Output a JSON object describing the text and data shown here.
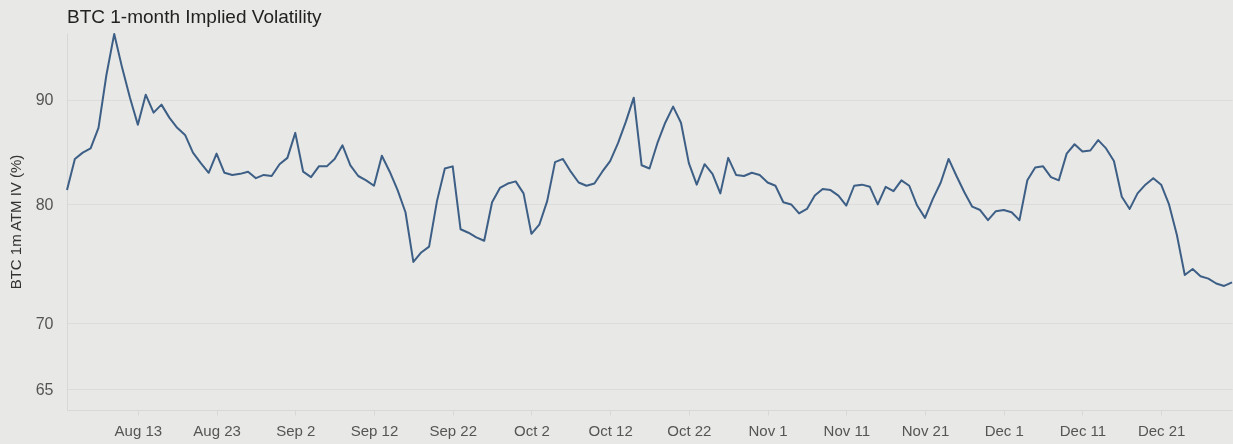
{
  "chart_data": {
    "type": "line",
    "title": "BTC 1-month Implied Volatility",
    "ylabel": "BTC 1m ATM IV (%)",
    "x": [
      "--08-04",
      "--08-05",
      "--08-06",
      "--08-07",
      "--08-08",
      "--08-09",
      "--08-10",
      "--08-11",
      "--08-12",
      "--08-13",
      "--08-14",
      "--08-15",
      "--08-16",
      "--08-17",
      "--08-18",
      "--08-19",
      "--08-20",
      "--08-21",
      "--08-22",
      "--08-23",
      "--08-24",
      "--08-25",
      "--08-26",
      "--08-27",
      "--08-28",
      "--08-29",
      "--08-30",
      "--08-31",
      "--09-01",
      "--09-02",
      "--09-03",
      "--09-04",
      "--09-05",
      "--09-06",
      "--09-07",
      "--09-08",
      "--09-09",
      "--09-10",
      "--09-11",
      "--09-12",
      "--09-13",
      "--09-14",
      "--09-15",
      "--09-16",
      "--09-17",
      "--09-18",
      "--09-19",
      "--09-20",
      "--09-21",
      "--09-22",
      "--09-23",
      "--09-24",
      "--09-25",
      "--09-26",
      "--09-27",
      "--09-28",
      "--09-29",
      "--09-30",
      "--10-01",
      "--10-02",
      "--10-03",
      "--10-04",
      "--10-05",
      "--10-06",
      "--10-07",
      "--10-08",
      "--10-09",
      "--10-10",
      "--10-11",
      "--10-12",
      "--10-13",
      "--10-14",
      "--10-15",
      "--10-16",
      "--10-17",
      "--10-18",
      "--10-19",
      "--10-20",
      "--10-21",
      "--10-22",
      "--10-23",
      "--10-24",
      "--10-25",
      "--10-26",
      "--10-27",
      "--10-28",
      "--10-29",
      "--10-30",
      "--10-31",
      "--11-01",
      "--11-02",
      "--11-03",
      "--11-04",
      "--11-05",
      "--11-06",
      "--11-07",
      "--11-08",
      "--11-09",
      "--11-10",
      "--11-11",
      "--11-12",
      "--11-13",
      "--11-14",
      "--11-15",
      "--11-16",
      "--11-17",
      "--11-18",
      "--11-19",
      "--11-20",
      "--11-21",
      "--11-22",
      "--11-23",
      "--11-24",
      "--11-25",
      "--11-26",
      "--11-27",
      "--11-28",
      "--11-29",
      "--11-30",
      "--12-01",
      "--12-02",
      "--12-03",
      "--12-04",
      "--12-05",
      "--12-06",
      "--12-07",
      "--12-08",
      "--12-09",
      "--12-10",
      "--12-11",
      "--12-12",
      "--12-13",
      "--12-14",
      "--12-15",
      "--12-16",
      "--12-17",
      "--12-18",
      "--12-19",
      "--12-20",
      "--12-21",
      "--12-22",
      "--12-23",
      "--12-24",
      "--12-25",
      "--12-26",
      "--12-27",
      "--12-28",
      "--12-29",
      "--12-30"
    ],
    "series": [
      {
        "color": "#3d5f86",
        "values": [
          81.3,
          84.2,
          84.8,
          85.2,
          87.2,
          92.5,
          96.9,
          93.3,
          90.2,
          87.5,
          90.5,
          88.7,
          89.5,
          88.2,
          87.2,
          86.5,
          84.8,
          83.8,
          82.9,
          84.7,
          82.9,
          82.7,
          82.8,
          83.0,
          82.4,
          82.7,
          82.6,
          83.7,
          84.3,
          86.7,
          83.0,
          82.5,
          83.5,
          83.5,
          84.2,
          85.5,
          83.6,
          82.6,
          82.2,
          81.7,
          84.5,
          83.0,
          81.3,
          79.3,
          75.0,
          75.8,
          76.3,
          80.3,
          83.3,
          83.5,
          77.8,
          77.5,
          77.1,
          76.8,
          80.2,
          81.5,
          81.9,
          82.1,
          81.0,
          77.4,
          78.2,
          80.3,
          83.9,
          84.2,
          83.0,
          82.0,
          81.7,
          81.9,
          83.0,
          84.0,
          85.7,
          87.8,
          90.2,
          83.6,
          83.3,
          85.7,
          87.7,
          89.3,
          87.7,
          83.8,
          81.8,
          83.7,
          82.8,
          81.0,
          84.3,
          82.7,
          82.6,
          82.9,
          82.7,
          82.0,
          81.7,
          80.2,
          80.0,
          79.2,
          79.6,
          80.8,
          81.4,
          81.3,
          80.8,
          79.9,
          81.7,
          81.8,
          81.6,
          80.0,
          81.6,
          81.2,
          82.2,
          81.7,
          79.9,
          78.8,
          80.5,
          82.0,
          84.2,
          82.6,
          81.1,
          79.8,
          79.5,
          78.6,
          79.4,
          79.5,
          79.3,
          78.6,
          82.2,
          83.4,
          83.5,
          82.5,
          82.2,
          84.7,
          85.6,
          84.9,
          85.0,
          86.0,
          85.2,
          84.0,
          80.7,
          79.6,
          81.0,
          81.8,
          82.4,
          81.8,
          80.0,
          77.3,
          73.9,
          74.4,
          73.8,
          73.6,
          73.2,
          73.0,
          73.3
        ]
      }
    ],
    "xlim": [
      "--08-04",
      "--12-30"
    ],
    "xticks": [
      {
        "value": "--08-13",
        "label": "Aug 13"
      },
      {
        "value": "--08-23",
        "label": "Aug 23"
      },
      {
        "value": "--09-02",
        "label": "Sep 2"
      },
      {
        "value": "--09-12",
        "label": "Sep 12"
      },
      {
        "value": "--09-22",
        "label": "Sep 22"
      },
      {
        "value": "--10-02",
        "label": "Oct 2"
      },
      {
        "value": "--10-12",
        "label": "Oct 12"
      },
      {
        "value": "--10-22",
        "label": "Oct 22"
      },
      {
        "value": "--11-01",
        "label": "Nov 1"
      },
      {
        "value": "--11-11",
        "label": "Nov 11"
      },
      {
        "value": "--11-21",
        "label": "Nov 21"
      },
      {
        "value": "--12-01",
        "label": "Dec 1"
      },
      {
        "value": "--12-11",
        "label": "Dec 11"
      },
      {
        "value": "--12-21",
        "label": "Dec 21"
      }
    ],
    "ylim": [
      63.5,
      97
    ],
    "yticks": [
      65,
      70,
      80,
      90
    ],
    "log": true,
    "grid": "y",
    "marker": "none",
    "line_style": "solid"
  }
}
